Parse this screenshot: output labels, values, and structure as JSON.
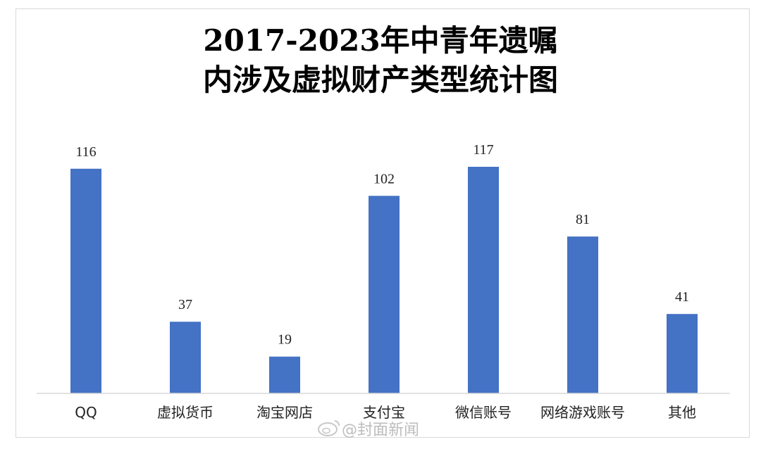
{
  "chart_data": {
    "type": "bar",
    "title": "2017-2023年中青年遗嘱",
    "subtitle": "内涉及虚拟财产类型统计图",
    "categories": [
      "QQ",
      "虚拟货币",
      "淘宝网店",
      "支付宝",
      "微信账号",
      "网络游戏账号",
      "其他"
    ],
    "values": [
      116,
      37,
      19,
      102,
      117,
      81,
      41
    ],
    "ylim": [
      0,
      117
    ],
    "grid": false,
    "legend": "none",
    "bar_color": "#4472C4"
  },
  "watermark": "@封面新闻"
}
